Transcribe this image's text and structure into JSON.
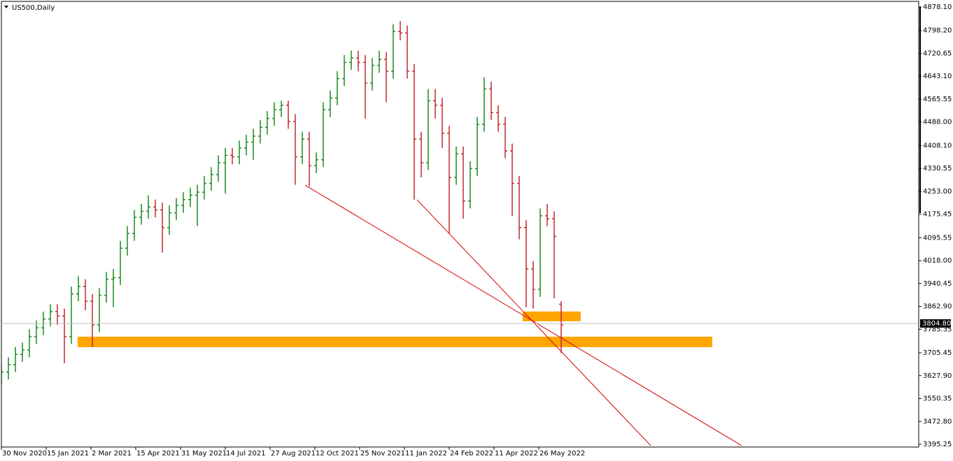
{
  "chart_data": {
    "type": "ohlc",
    "title": "US500,Daily",
    "x": [
      0,
      5,
      10,
      15,
      20,
      25,
      30,
      35,
      40,
      45,
      50,
      55,
      60,
      65,
      70,
      75,
      80,
      85,
      90,
      95,
      100,
      105,
      110,
      115,
      120,
      125,
      130,
      135,
      140,
      145,
      150,
      155,
      160,
      165,
      170,
      175,
      180,
      185,
      190,
      195,
      200,
      205,
      210,
      215,
      220,
      225,
      230,
      235,
      240,
      245,
      250,
      255,
      260,
      265,
      270,
      275,
      280,
      285,
      290,
      295,
      300,
      305,
      310,
      315,
      320,
      325,
      330,
      335,
      340,
      345,
      350,
      355,
      360,
      365,
      370,
      375,
      380,
      385,
      390,
      395,
      400
    ],
    "open": [
      3600,
      3640,
      3665,
      3700,
      3715,
      3760,
      3790,
      3820,
      3845,
      3830,
      3760,
      3905,
      3930,
      3880,
      3800,
      3900,
      3955,
      3960,
      4060,
      4110,
      4165,
      4185,
      4200,
      4190,
      4130,
      4180,
      4205,
      4225,
      4240,
      4250,
      4280,
      4310,
      4350,
      4375,
      4370,
      4400,
      4420,
      4440,
      4470,
      4500,
      4530,
      4545,
      4490,
      4370,
      4430,
      4340,
      4360,
      4530,
      4570,
      4635,
      4690,
      4705,
      4690,
      4620,
      4680,
      4700,
      4660,
      4795,
      4790,
      4660,
      4430,
      4350,
      4560,
      4545,
      4450,
      4300,
      4380,
      4220,
      4330,
      4480,
      4600,
      4520,
      4480,
      4390,
      4280,
      4130,
      3990,
      3920,
      4170,
      4160,
      3870
    ],
    "high": [
      3665,
      3690,
      3725,
      3740,
      3785,
      3815,
      3845,
      3870,
      3870,
      3855,
      3930,
      3965,
      3955,
      3905,
      3925,
      3980,
      3990,
      4085,
      4135,
      4190,
      4210,
      4240,
      4225,
      4215,
      4205,
      4230,
      4250,
      4265,
      4275,
      4305,
      4335,
      4375,
      4400,
      4400,
      4425,
      4445,
      4465,
      4495,
      4525,
      4555,
      4560,
      4560,
      4515,
      4455,
      4455,
      4385,
      4555,
      4595,
      4660,
      4715,
      4730,
      4730,
      4715,
      4705,
      4730,
      4725,
      4820,
      4830,
      4815,
      4685,
      4455,
      4600,
      4600,
      4570,
      4475,
      4405,
      4405,
      4355,
      4505,
      4640,
      4625,
      4545,
      4505,
      4415,
      4305,
      4155,
      4015,
      4195,
      4210,
      4185,
      3880
    ],
    "low": [
      3595,
      3615,
      3640,
      3675,
      3690,
      3735,
      3765,
      3795,
      3800,
      3670,
      3735,
      3880,
      3850,
      3725,
      3775,
      3875,
      3860,
      3935,
      4035,
      4085,
      4140,
      4160,
      4165,
      4045,
      4105,
      4155,
      4180,
      4200,
      4135,
      4225,
      4255,
      4285,
      4245,
      4345,
      4345,
      4375,
      4360,
      4415,
      4445,
      4475,
      4505,
      4465,
      4275,
      4345,
      4270,
      4315,
      4335,
      4505,
      4545,
      4610,
      4665,
      4660,
      4500,
      4595,
      4655,
      4555,
      4635,
      4765,
      4635,
      4225,
      4300,
      4325,
      4500,
      4400,
      4110,
      4275,
      4160,
      4195,
      4305,
      4455,
      4495,
      4455,
      4365,
      4170,
      4090,
      3860,
      3855,
      3895,
      4135,
      3890,
      3705
    ],
    "close": [
      3640,
      3665,
      3700,
      3715,
      3760,
      3790,
      3820,
      3845,
      3830,
      3760,
      3905,
      3930,
      3880,
      3800,
      3900,
      3955,
      3960,
      4060,
      4110,
      4165,
      4185,
      4200,
      4190,
      4130,
      4180,
      4205,
      4225,
      4240,
      4250,
      4280,
      4310,
      4350,
      4375,
      4370,
      4400,
      4420,
      4440,
      4470,
      4500,
      4530,
      4545,
      4490,
      4370,
      4430,
      4340,
      4360,
      4530,
      4570,
      4635,
      4690,
      4705,
      4690,
      4620,
      4680,
      4700,
      4660,
      4795,
      4790,
      4660,
      4430,
      4350,
      4560,
      4545,
      4450,
      4300,
      4380,
      4220,
      4330,
      4480,
      4600,
      4520,
      4480,
      4390,
      4280,
      4130,
      3990,
      3920,
      4170,
      4160,
      4100,
      3800
    ],
    "up_color": "#1a8a1a",
    "down_color": "#c0282d",
    "xlim": [
      0,
      655.5
    ],
    "xticks": [
      {
        "value": 0,
        "label": "30 Nov 2020"
      },
      {
        "value": 32,
        "label": "15 Jan 2021"
      },
      {
        "value": 64,
        "label": "2 Mar 2021"
      },
      {
        "value": 96,
        "label": "15 Apr 2021"
      },
      {
        "value": 128,
        "label": "31 May 2021"
      },
      {
        "value": 160,
        "label": "14 Jul 2021"
      },
      {
        "value": 192,
        "label": "27 Aug 2021"
      },
      {
        "value": 224,
        "label": "12 Oct 2021"
      },
      {
        "value": 256,
        "label": "25 Nov 2021"
      },
      {
        "value": 288,
        "label": "11 Jan 2022"
      },
      {
        "value": 320,
        "label": "24 Feb 2022"
      },
      {
        "value": 352,
        "label": "11 Apr 2022"
      },
      {
        "value": 384,
        "label": "26 May 2022"
      }
    ],
    "ylim": [
      3385.8,
      4897.0
    ],
    "yticks": [
      {
        "value": 4878.1,
        "label": "4878.10"
      },
      {
        "value": 4798.2,
        "label": "4798.20"
      },
      {
        "value": 4720.65,
        "label": "4720.65"
      },
      {
        "value": 4643.1,
        "label": "4643.10"
      },
      {
        "value": 4565.55,
        "label": "4565.55"
      },
      {
        "value": 4488.0,
        "label": "4488.00"
      },
      {
        "value": 4408.1,
        "label": "4408.10"
      },
      {
        "value": 4330.55,
        "label": "4330.55"
      },
      {
        "value": 4253.0,
        "label": "4253.00"
      },
      {
        "value": 4175.45,
        "label": "4175.45"
      },
      {
        "value": 4095.55,
        "label": "4095.55"
      },
      {
        "value": 4018.0,
        "label": "4018.00"
      },
      {
        "value": 3940.45,
        "label": "3940.45"
      },
      {
        "value": 3862.9,
        "label": "3862.90"
      },
      {
        "value": 3785.35,
        "label": "3785.35"
      },
      {
        "value": 3705.45,
        "label": "3705.45"
      },
      {
        "value": 3627.9,
        "label": "3627.90"
      },
      {
        "value": 3550.35,
        "label": "3550.35"
      },
      {
        "value": 3472.8,
        "label": "3472.80"
      },
      {
        "value": 3395.25,
        "label": "3395.25"
      }
    ],
    "last_price": {
      "value": 3804.8,
      "label": "3804.80"
    },
    "zones": [
      {
        "x": [
          54.5,
          508
        ],
        "y": [
          3724.6,
          3760.1
        ]
      },
      {
        "x": [
          372.5,
          414
        ],
        "y": [
          3812.3,
          3845.4
        ]
      }
    ],
    "zone_color": "#ffa500",
    "trendlines": [
      {
        "x": [
          217,
          529
        ],
        "y": [
          4274,
          3390.7
        ]
      },
      {
        "x": [
          297,
          464
        ],
        "y": [
          4224.4,
          3390.7
        ]
      }
    ],
    "trendline_color": "#d40000"
  }
}
